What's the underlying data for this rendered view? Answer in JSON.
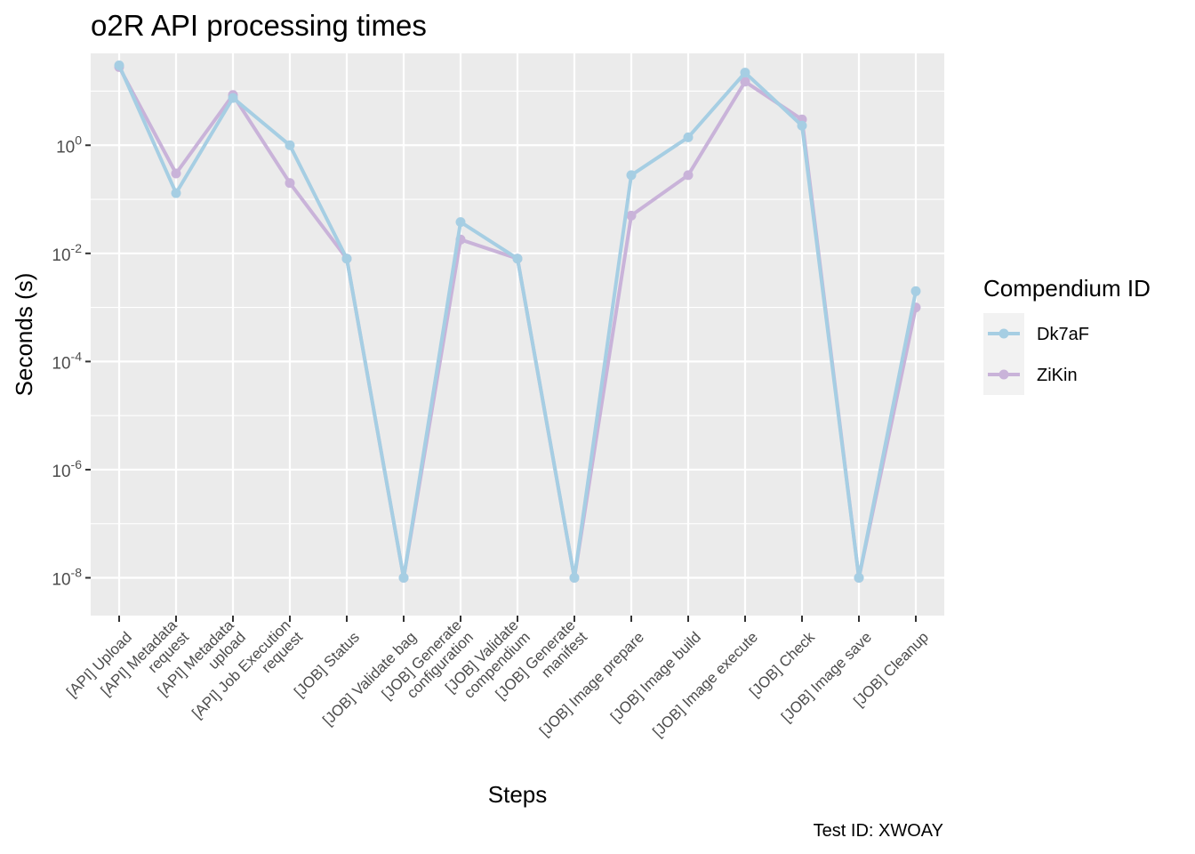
{
  "chart_data": {
    "type": "line",
    "title": "o2R API processing times",
    "xlabel": "Steps",
    "ylabel": "Seconds (s)",
    "yscale": "log10",
    "ylim": [
      2e-09,
      50
    ],
    "yticks": [
      {
        "value": 1,
        "base": "10",
        "exp": "0"
      },
      {
        "value": 0.01,
        "base": "10",
        "exp": "-2"
      },
      {
        "value": 0.0001,
        "base": "10",
        "exp": "-4"
      },
      {
        "value": 1e-06,
        "base": "10",
        "exp": "-6"
      },
      {
        "value": 1e-08,
        "base": "10",
        "exp": "-8"
      }
    ],
    "categories": [
      [
        "[API] Upload"
      ],
      [
        "[API] Metadata",
        "request"
      ],
      [
        "[API] Metadata",
        "upload"
      ],
      [
        "[API] Job Execution",
        "request"
      ],
      [
        "[JOB] Status"
      ],
      [
        "[JOB] Validate bag"
      ],
      [
        "[JOB] Generate",
        "configuration"
      ],
      [
        "[JOB] Validate",
        "compendium"
      ],
      [
        "[JOB] Generate",
        "manifest"
      ],
      [
        "[JOB] Image prepare"
      ],
      [
        "[JOB] Image build"
      ],
      [
        "[JOB] Image execute"
      ],
      [
        "[JOB] Check"
      ],
      [
        "[JOB] Image save"
      ],
      [
        "[JOB] Cleanup"
      ]
    ],
    "series": [
      {
        "name": "ZiKin",
        "color": "#c9b3d9",
        "values": [
          28,
          0.3,
          8.5,
          0.2,
          0.008,
          1e-08,
          0.018,
          0.008,
          1e-08,
          0.05,
          0.28,
          15,
          3,
          1e-08,
          0.001
        ]
      },
      {
        "name": "Dk7aF",
        "color": "#a6cee3",
        "values": [
          30,
          0.13,
          7.5,
          1.0,
          0.008,
          1e-08,
          0.038,
          0.008,
          1e-08,
          0.28,
          1.4,
          22,
          2.3,
          1e-08,
          0.002
        ]
      }
    ],
    "legend": {
      "title": "Compendium ID",
      "position": "right",
      "entries": [
        "Dk7aF",
        "ZiKin"
      ]
    },
    "caption": "Test ID: XWOAY",
    "grid": true,
    "panel_color": "#ebebeb"
  }
}
